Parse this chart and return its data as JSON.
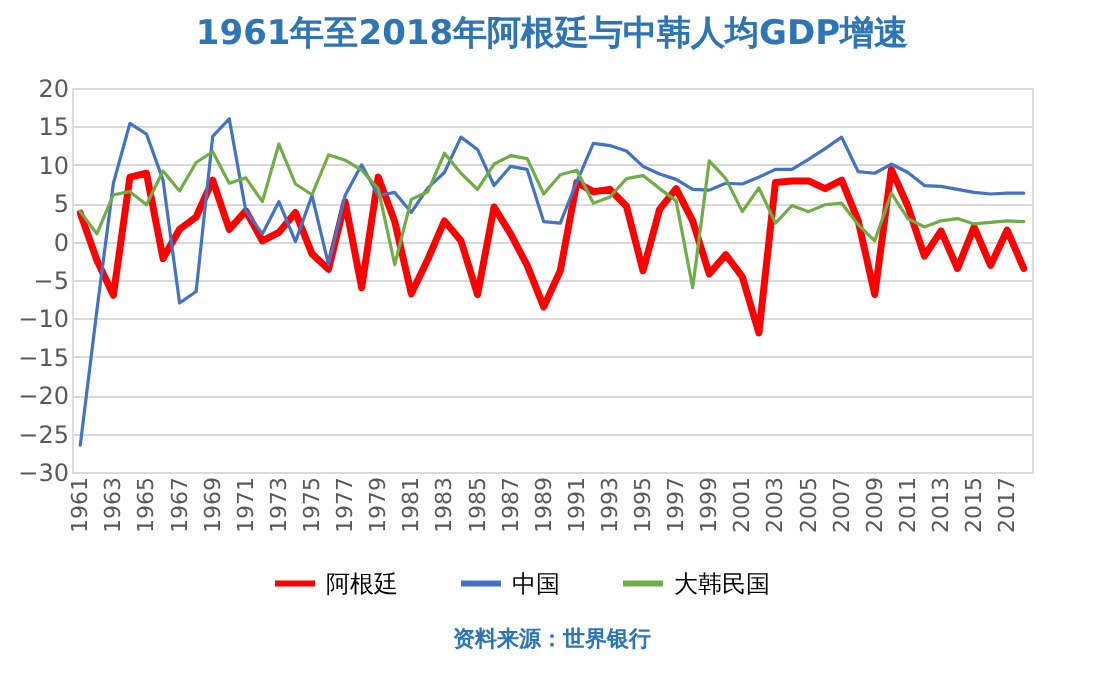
{
  "chart_data": {
    "type": "line",
    "title": "1961年至2018年阿根廷与中韩人均GDP增速",
    "categories": [
      "1961",
      null,
      "1963",
      null,
      "1965",
      null,
      "1967",
      null,
      "1969",
      null,
      "1971",
      null,
      "1973",
      null,
      "1975",
      null,
      "1977",
      null,
      "1979",
      null,
      "1981",
      null,
      "1983",
      null,
      "1985",
      null,
      "1987",
      null,
      "1989",
      null,
      "1991",
      null,
      "1993",
      null,
      "1995",
      null,
      "1997",
      null,
      "1999",
      null,
      "2001",
      null,
      "2003",
      null,
      "2005",
      null,
      "2007",
      null,
      "2009",
      null,
      "2011",
      null,
      "2013",
      null,
      "2015",
      null,
      "2017",
      null
    ],
    "series": [
      {
        "name": "阿根廷",
        "color": "#ff0000",
        "values": [
          3.7,
          -2.4,
          -7.0,
          8.4,
          8.9,
          -2.2,
          1.6,
          3.2,
          8.0,
          1.6,
          4.0,
          0.1,
          1.2,
          3.8,
          -1.6,
          -3.6,
          5.2,
          -6.0,
          8.4,
          2.6,
          -6.8,
          -2.3,
          2.7,
          0.1,
          -6.9,
          4.5,
          1.0,
          -3.1,
          -8.5,
          -3.8,
          7.7,
          6.5,
          6.8,
          4.6,
          -3.8,
          4.2,
          6.9,
          2.7,
          -4.2,
          -1.7,
          -4.6,
          -11.9,
          7.7,
          7.9,
          7.9,
          6.9,
          8.0,
          2.7,
          -6.9,
          9.4,
          4.6,
          -1.9,
          1.4,
          -3.5,
          1.9,
          -3.1,
          1.5,
          -3.5
        ]
      },
      {
        "name": "中国",
        "color": "#4472c4",
        "values": [
          -26.5,
          -9.0,
          7.6,
          15.4,
          14.0,
          8.0,
          -8.0,
          -6.5,
          13.7,
          16.0,
          4.0,
          1.0,
          5.2,
          0.0,
          6.0,
          -3.0,
          6.0,
          10.0,
          6.0,
          6.4,
          3.8,
          7.0,
          9.0,
          13.6,
          12.0,
          7.3,
          9.8,
          9.4,
          2.6,
          2.4,
          7.8,
          12.8,
          12.5,
          11.8,
          9.8,
          8.8,
          8.1,
          6.8,
          6.7,
          7.6,
          7.5,
          8.4,
          9.4,
          9.4,
          10.7,
          12.1,
          13.6,
          9.1,
          8.9,
          10.1,
          9.0,
          7.3,
          7.2,
          6.8,
          6.4,
          6.2,
          6.3,
          6.3
        ]
      },
      {
        "name": "大韩民国",
        "color": "#70ad47",
        "values": [
          3.9,
          1.0,
          6.1,
          6.5,
          4.8,
          9.2,
          6.6,
          10.3,
          11.7,
          7.6,
          8.3,
          5.2,
          12.7,
          7.5,
          6.1,
          11.3,
          10.6,
          9.3,
          6.9,
          -3.0,
          5.5,
          6.5,
          11.5,
          8.9,
          6.8,
          10.1,
          11.2,
          10.8,
          6.2,
          8.7,
          9.3,
          5.0,
          5.8,
          8.2,
          8.6,
          6.9,
          5.3,
          -6.0,
          10.5,
          8.2,
          3.9,
          7.0,
          2.4,
          4.7,
          3.9,
          4.8,
          5.0,
          2.2,
          0.1,
          6.3,
          3.0,
          1.9,
          2.7,
          3.0,
          2.3,
          2.5,
          2.7,
          2.6
        ]
      }
    ],
    "ylim": [
      -30,
      20
    ],
    "yticks": [
      -30,
      -25,
      -20,
      -15,
      -10,
      -5,
      0,
      5,
      10,
      15,
      20
    ],
    "grid": "y",
    "legend": "bottom",
    "annotations": [
      "资料来源：世界银行"
    ]
  }
}
